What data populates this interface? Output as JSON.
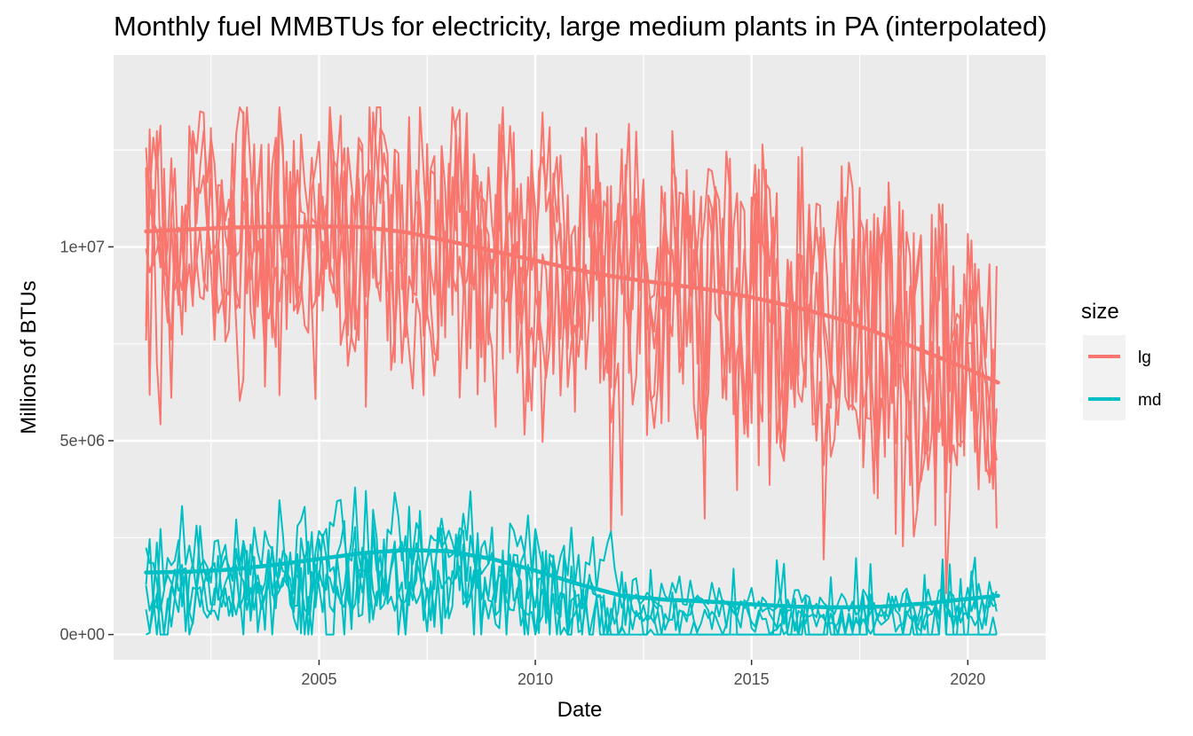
{
  "chart_data": {
    "type": "line",
    "title": "Monthly fuel MMBTUs for electricity, large medium plants in PA (interpolated)",
    "xlabel": "Date",
    "ylabel": "Millions of BTUs",
    "x_ticks": [
      2005,
      2010,
      2015,
      2020
    ],
    "x_tick_labels": [
      "2005",
      "2010",
      "2015",
      "2020"
    ],
    "y_ticks": [
      0,
      5000000,
      10000000
    ],
    "y_tick_labels": [
      "0e+00",
      "5e+06",
      "1e+07"
    ],
    "xlim": [
      2000.25,
      2021.8
    ],
    "ylim": [
      -650000,
      14950000
    ],
    "grid": true,
    "legend": {
      "title": "size",
      "position": "right"
    },
    "colors": {
      "lg": "#F8766D",
      "md": "#00BFC4",
      "panel": "#EBEBEB",
      "grid": "#FFFFFF"
    },
    "series": [
      {
        "name": "lg",
        "color": "#F8766D",
        "time_range": [
          2001.0,
          2020.7
        ],
        "value_range": [
          1000000,
          13600000
        ],
        "plant_lines": 5,
        "trend_x": [
          2001.0,
          2002.0,
          2003.0,
          2004.0,
          2005.0,
          2006.0,
          2007.0,
          2008.0,
          2009.0,
          2010.0,
          2011.0,
          2012.0,
          2013.0,
          2014.0,
          2015.0,
          2016.0,
          2017.0,
          2018.0,
          2019.0,
          2020.0,
          2020.7
        ],
        "trend_y": [
          10400000,
          10450000,
          10500000,
          10520000,
          10530000,
          10510000,
          10380000,
          10150000,
          9900000,
          9650000,
          9400000,
          9200000,
          9050000,
          8900000,
          8700000,
          8450000,
          8150000,
          7750000,
          7300000,
          6850000,
          6500000
        ]
      },
      {
        "name": "md",
        "color": "#00BFC4",
        "time_range": [
          2001.0,
          2020.7
        ],
        "value_range": [
          0,
          4000000
        ],
        "plant_lines": 5,
        "trend_x": [
          2001.0,
          2002.0,
          2003.0,
          2004.0,
          2005.0,
          2006.0,
          2007.0,
          2008.0,
          2009.0,
          2010.0,
          2011.0,
          2012.0,
          2013.0,
          2014.0,
          2015.0,
          2016.0,
          2017.0,
          2018.0,
          2019.0,
          2020.0,
          2020.7
        ],
        "trend_y": [
          1600000,
          1620000,
          1680000,
          1800000,
          1950000,
          2100000,
          2180000,
          2150000,
          1950000,
          1650000,
          1300000,
          1000000,
          900000,
          850000,
          780000,
          720000,
          700000,
          720000,
          800000,
          920000,
          1000000
        ]
      }
    ]
  }
}
